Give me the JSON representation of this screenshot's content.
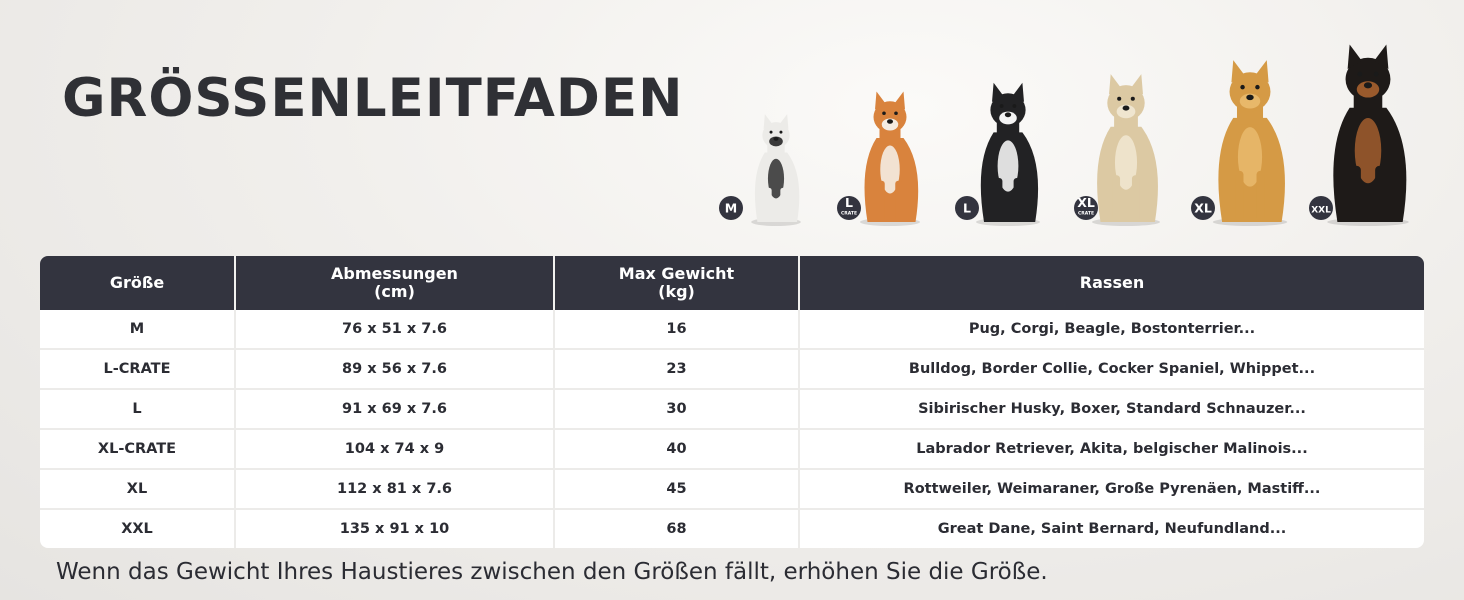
{
  "title": "GRÖSSENLEITFADEN",
  "dogs": [
    {
      "badge": "M",
      "sub": "",
      "breed_icon": "french-bulldog-icon",
      "coat": "#ecebe8",
      "accent": "#3a3a3a"
    },
    {
      "badge": "L",
      "sub": "CRATE",
      "breed_icon": "shiba-inu-icon",
      "coat": "#d9833d",
      "accent": "#f4ece2"
    },
    {
      "badge": "L",
      "sub": "",
      "breed_icon": "border-collie-icon",
      "coat": "#222224",
      "accent": "#f3f3f3"
    },
    {
      "badge": "XL",
      "sub": "CRATE",
      "breed_icon": "labrador-icon",
      "coat": "#dcc9a3",
      "accent": "#efe5cf"
    },
    {
      "badge": "XL",
      "sub": "",
      "breed_icon": "golden-retriever-icon",
      "coat": "#d59a45",
      "accent": "#e8b86a"
    },
    {
      "badge": "XXL",
      "sub": "",
      "breed_icon": "doberman-icon",
      "coat": "#1e1a18",
      "accent": "#9a5a2c"
    }
  ],
  "table": {
    "headers": [
      {
        "line1": "Größe",
        "line2": ""
      },
      {
        "line1": "Abmessungen",
        "line2": "(cm)"
      },
      {
        "line1": "Max Gewicht",
        "line2": "(kg)"
      },
      {
        "line1": "Rassen",
        "line2": ""
      }
    ],
    "rows": [
      [
        "M",
        "76 x 51 x 7.6",
        "16",
        "Pug, Corgi, Beagle, Bostonterrier..."
      ],
      [
        "L-CRATE",
        "89 x 56 x 7.6",
        "23",
        "Bulldog, Border Collie, Cocker Spaniel, Whippet..."
      ],
      [
        "L",
        "91 x 69 x 7.6",
        "30",
        "Sibirischer Husky, Boxer, Standard Schnauzer..."
      ],
      [
        "XL-CRATE",
        "104 x 74 x 9",
        "40",
        "Labrador Retriever, Akita, belgischer Malinois..."
      ],
      [
        "XL",
        "112 x 81 x 7.6",
        "45",
        "Rottweiler, Weimaraner, Große Pyrenäen, Mastiff..."
      ],
      [
        "XXL",
        "135 x 91 x 10",
        "68",
        "Great Dane, Saint Bernard, Neufundland..."
      ]
    ]
  },
  "note": "Wenn das Gewicht Ihres Haustieres zwischen den Größen fällt, erhöhen Sie die Größe.",
  "colors": {
    "header_bg": "#33343f",
    "badge_bg": "#33343f",
    "text": "#2b2c33"
  }
}
